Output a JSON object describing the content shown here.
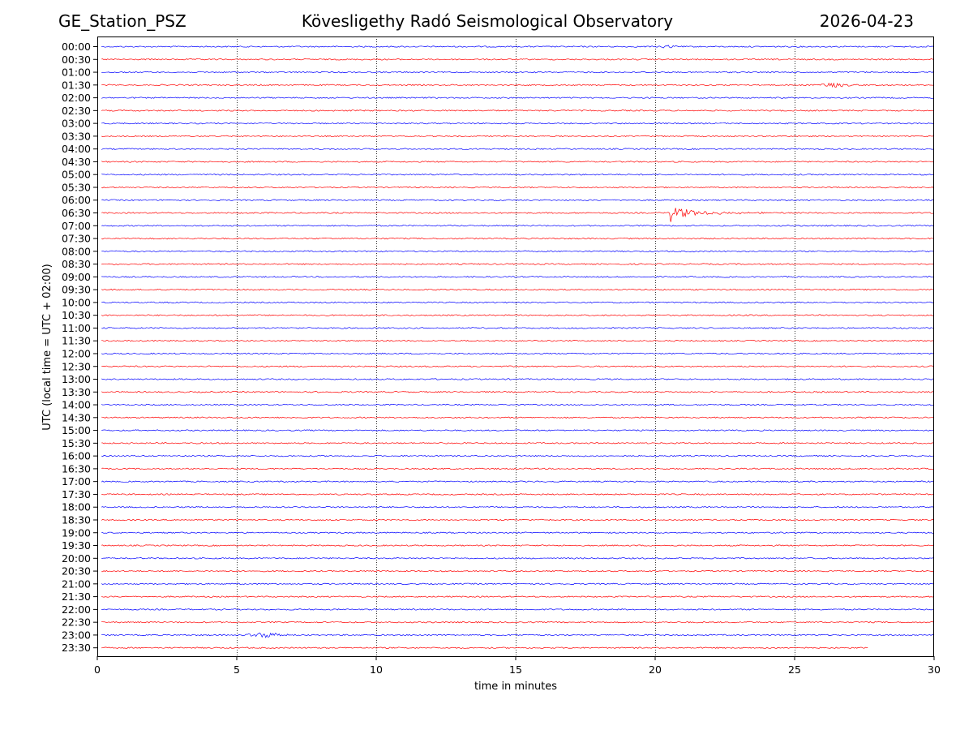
{
  "header": {
    "station": "GE_Station_PSZ",
    "observatory": "Kövesligethy Radó Seismological Observatory",
    "date": "2026-04-23"
  },
  "chart_data": {
    "type": "line",
    "title": "Kövesligethy Radó Seismological Observatory",
    "xlabel": "time in minutes",
    "ylabel": "UTC (local time = UTC + 02:00)",
    "xlim": [
      0,
      30
    ],
    "xticks": [
      0,
      5,
      10,
      15,
      20,
      25,
      30
    ],
    "grid": "vertical dotted lines at 5, 10, 15, 20, 25",
    "row_labels": [
      "00:00",
      "00:30",
      "01:00",
      "01:30",
      "02:00",
      "02:30",
      "03:00",
      "03:30",
      "04:00",
      "04:30",
      "05:00",
      "05:30",
      "06:00",
      "06:30",
      "07:00",
      "07:30",
      "08:00",
      "08:30",
      "09:00",
      "09:30",
      "10:00",
      "10:30",
      "11:00",
      "11:30",
      "12:00",
      "12:30",
      "13:00",
      "13:30",
      "14:00",
      "14:30",
      "15:00",
      "15:30",
      "16:00",
      "16:30",
      "17:00",
      "17:30",
      "18:00",
      "18:30",
      "19:00",
      "19:30",
      "20:00",
      "20:30",
      "21:00",
      "21:30",
      "22:00",
      "22:30",
      "23:00",
      "23:30"
    ],
    "row_colors": [
      "#0000ff",
      "#ff0000"
    ],
    "trace_start_minute": 0.15,
    "last_row_end_minute": 27.65,
    "events": [
      {
        "row": "00:00",
        "start": 20.0,
        "end": 20.9,
        "peak_amplitude": 0.22
      },
      {
        "row": "01:30",
        "start": 25.5,
        "end": 27.2,
        "peak_amplitude": 0.28
      },
      {
        "row": "06:30",
        "start": 20.55,
        "end": 24.5,
        "peak_amplitude": 1.8,
        "type": "earthquake"
      },
      {
        "row": "23:00",
        "start": 5.2,
        "end": 7.0,
        "peak_amplitude": 0.4
      }
    ]
  }
}
